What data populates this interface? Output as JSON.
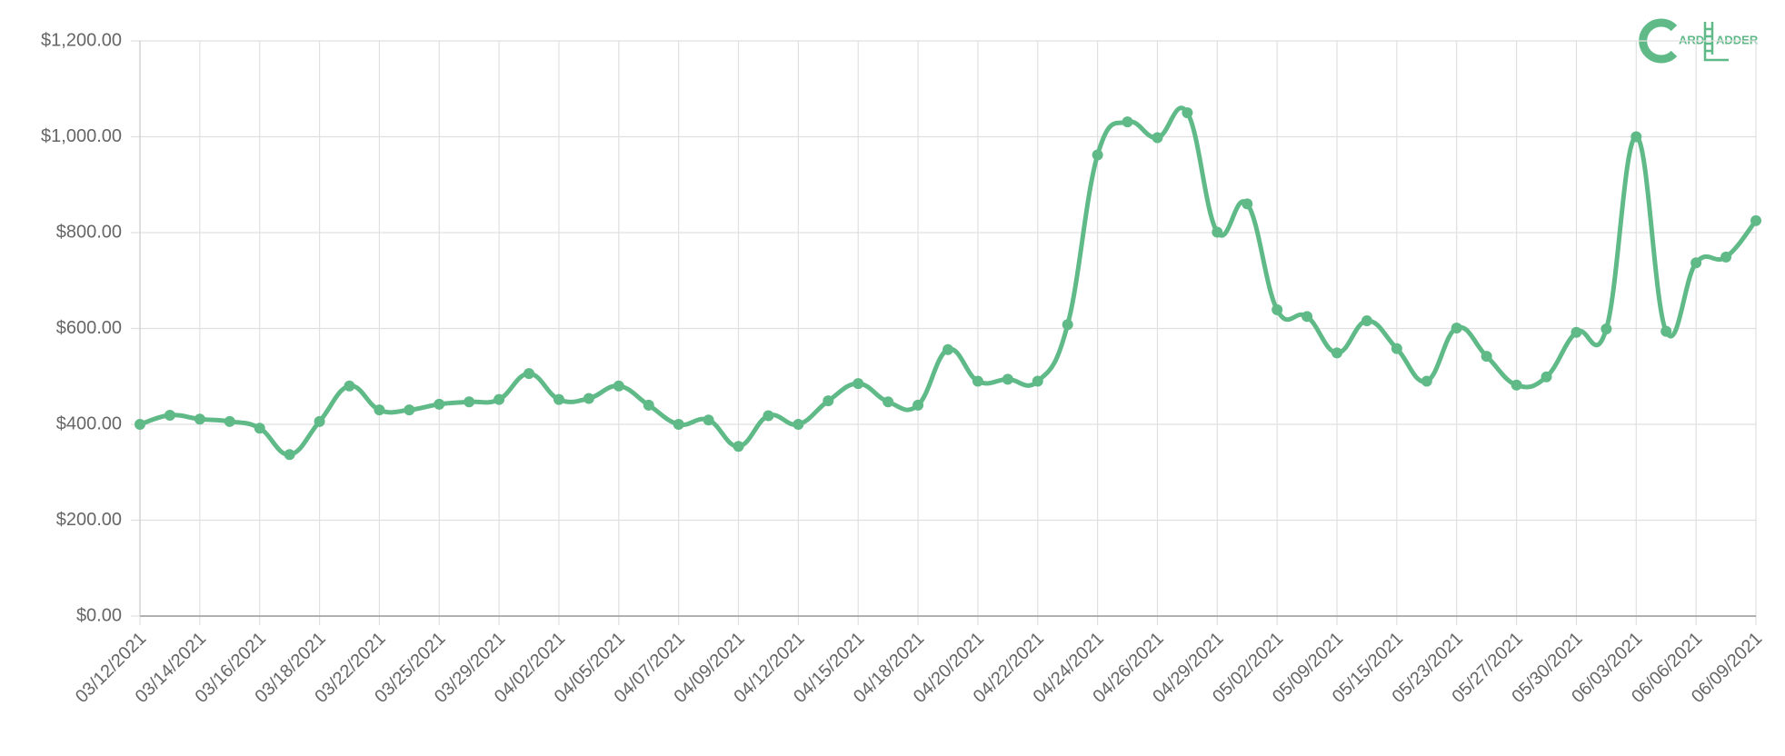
{
  "chart_data": {
    "type": "line",
    "logo": [
      "ARD",
      "ADDER"
    ],
    "categories": [
      "03/12/2021",
      null,
      "03/14/2021",
      null,
      "03/16/2021",
      null,
      "03/18/2021",
      null,
      "03/22/2021",
      null,
      "03/25/2021",
      null,
      "03/29/2021",
      null,
      "04/02/2021",
      null,
      "04/05/2021",
      null,
      "04/07/2021",
      null,
      "04/09/2021",
      null,
      "04/12/2021",
      null,
      "04/15/2021",
      null,
      "04/18/2021",
      null,
      "04/20/2021",
      null,
      "04/22/2021",
      null,
      "04/24/2021",
      null,
      "04/26/2021",
      null,
      "04/29/2021",
      null,
      "05/02/2021",
      null,
      "05/09/2021",
      null,
      "05/15/2021",
      null,
      "05/23/2021",
      null,
      "05/27/2021",
      null,
      "05/30/2021",
      null,
      "06/03/2021",
      null,
      "06/06/2021",
      null,
      "06/09/2021"
    ],
    "series": [
      {
        "color": "#5fba88",
        "values": [
          400,
          419,
          411,
          406,
          392,
          337,
          406,
          480,
          430,
          430,
          442,
          447,
          452,
          506,
          452,
          454,
          480,
          440,
          400,
          409,
          354,
          418,
          400,
          449,
          485,
          447,
          440,
          556,
          490,
          494,
          490,
          608,
          962,
          1031,
          998,
          1050,
          801,
          860,
          639,
          625,
          549,
          616,
          558,
          490,
          601,
          542,
          482,
          499,
          592,
          599,
          1000,
          594,
          737,
          749,
          825
        ]
      }
    ],
    "ylim": [
      0,
      1200
    ],
    "yticks": [
      {
        "value": 0,
        "label": "$0.00"
      },
      {
        "value": 200,
        "label": "$200.00"
      },
      {
        "value": 400,
        "label": "$400.00"
      },
      {
        "value": 600,
        "label": "$600.00"
      },
      {
        "value": 800,
        "label": "$800.00"
      },
      {
        "value": 1000,
        "label": "$1,000.00"
      },
      {
        "value": 1200,
        "label": "$1,200.00"
      }
    ],
    "grid": true
  }
}
